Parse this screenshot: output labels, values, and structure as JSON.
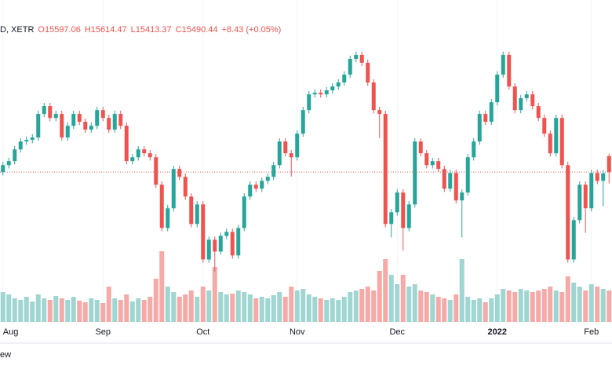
{
  "chart_data": {
    "type": "candlestick",
    "legend": {
      "symbol": "D, XETR",
      "open": "O15597.06",
      "high": "H15614.47",
      "low": "L15413.37",
      "close": "C15490.44",
      "change": "+8.43 (+0.05%)"
    },
    "footer": "ew",
    "categories": [
      "Aug",
      null,
      null,
      null,
      null,
      null,
      null,
      null,
      null,
      null,
      null,
      null,
      null,
      null,
      null,
      null,
      null,
      "Sep",
      null,
      null,
      null,
      null,
      null,
      null,
      null,
      null,
      null,
      null,
      null,
      null,
      null,
      null,
      null,
      null,
      "Oct",
      null,
      null,
      null,
      null,
      null,
      null,
      null,
      null,
      null,
      null,
      null,
      null,
      null,
      null,
      null,
      "Nov",
      null,
      null,
      null,
      null,
      null,
      null,
      null,
      null,
      null,
      null,
      null,
      null,
      null,
      null,
      null,
      null,
      "Dec",
      null,
      null,
      null,
      null,
      null,
      null,
      null,
      null,
      null,
      null,
      null,
      null,
      null,
      null,
      null,
      null,
      "2022",
      null,
      null,
      null,
      null,
      null,
      null,
      null,
      null,
      null,
      null,
      null,
      null,
      null,
      null,
      null,
      "Feb",
      null,
      null,
      null
    ],
    "open": [
      15490,
      15537,
      15564,
      15643,
      15696,
      15707,
      15723,
      15882,
      15935,
      15855,
      15882,
      15723,
      15802,
      15882,
      15829,
      15776,
      15802,
      15908,
      15855,
      15776,
      15882,
      15802,
      15564,
      15590,
      15643,
      15617,
      15590,
      15405,
      15113,
      15246,
      15511,
      15458,
      15325,
      15140,
      15272,
      14901,
      15034,
      14954,
      15060,
      15087,
      14928,
      15113,
      15325,
      15405,
      15378,
      15431,
      15458,
      15537,
      15696,
      15617,
      15590,
      15749,
      15908,
      16014,
      16025,
      16014,
      16041,
      16067,
      16094,
      16147,
      16253,
      16280,
      16227,
      16094,
      15908,
      15882,
      15140,
      15219,
      15352,
      15113,
      15272,
      15696,
      15617,
      15537,
      15564,
      15511,
      15378,
      15484,
      15299,
      15352,
      15590,
      15696,
      15882,
      15829,
      15961,
      16147,
      16280,
      16067,
      15908,
      15988,
      16014,
      15935,
      15855,
      15749,
      15617,
      15855,
      15537,
      14901,
      15166,
      15405,
      15246,
      15484,
      15431,
      15597.06
    ],
    "high": [
      15559,
      15586,
      15665,
      15718,
      15729,
      15745,
      15904,
      15957,
      15957,
      15904,
      15904,
      15824,
      15904,
      15904,
      15851,
      15824,
      15930,
      15930,
      15877,
      15904,
      15904,
      15824,
      15612,
      15665,
      15665,
      15639,
      15612,
      15427,
      15268,
      15533,
      15533,
      15480,
      15347,
      15294,
      15294,
      15056,
      15056,
      15082,
      15109,
      15109,
      15135,
      15347,
      15427,
      15427,
      15453,
      15480,
      15559,
      15718,
      15718,
      15639,
      15771,
      15930,
      16036,
      16047,
      16047,
      16063,
      16089,
      16116,
      16169,
      16275,
      16302,
      16302,
      16249,
      16116,
      15930,
      15904,
      15241,
      15374,
      15374,
      15294,
      15718,
      15718,
      15639,
      15586,
      15586,
      15533,
      15506,
      15506,
      15374,
      15612,
      15718,
      15904,
      15904,
      15983,
      16169,
      16302,
      16302,
      16089,
      16010,
      16036,
      16036,
      15957,
      15877,
      15771,
      15877,
      15877,
      15559,
      15188,
      15427,
      15427,
      15506,
      15506,
      15504,
      15614.47
    ],
    "low": [
      15468,
      15515,
      15542,
      15621,
      15674,
      15685,
      15701,
      15860,
      15833,
      15833,
      15701,
      15701,
      15780,
      15807,
      15754,
      15754,
      15780,
      15833,
      15754,
      15754,
      15780,
      15542,
      15542,
      15568,
      15595,
      15568,
      15383,
      15091,
      15091,
      15224,
      15436,
      15303,
      15118,
      15118,
      14879,
      14879,
      14820,
      14932,
      15038,
      14906,
      14906,
      15091,
      15303,
      15356,
      15356,
      15409,
      15436,
      15515,
      15595,
      15460,
      15568,
      15727,
      15886,
      15992,
      15992,
      15992,
      16019,
      16045,
      16072,
      16125,
      16231,
      16205,
      16072,
      15886,
      15720,
      15118,
      15050,
      15197,
      14960,
      15091,
      15250,
      15595,
      15515,
      15515,
      15489,
      15356,
      15356,
      15277,
      15050,
      15330,
      15568,
      15674,
      15807,
      15807,
      15939,
      16125,
      16045,
      15886,
      15886,
      15966,
      15913,
      15833,
      15727,
      15595,
      15595,
      15515,
      14879,
      14879,
      15144,
      15080,
      15224,
      15409,
      15260,
      15413.37
    ],
    "close": [
      15537,
      15564,
      15643,
      15696,
      15707,
      15723,
      15882,
      15935,
      15855,
      15882,
      15723,
      15802,
      15882,
      15829,
      15776,
      15802,
      15908,
      15855,
      15776,
      15882,
      15802,
      15564,
      15590,
      15643,
      15617,
      15590,
      15405,
      15113,
      15246,
      15511,
      15458,
      15325,
      15140,
      15272,
      14901,
      15034,
      14954,
      15060,
      15087,
      14928,
      15113,
      15325,
      15405,
      15378,
      15431,
      15458,
      15537,
      15696,
      15617,
      15590,
      15749,
      15908,
      16014,
      16025,
      16014,
      16041,
      16067,
      16094,
      16147,
      16253,
      16280,
      16227,
      16094,
      15908,
      15882,
      15140,
      15219,
      15352,
      15113,
      15272,
      15696,
      15617,
      15537,
      15564,
      15511,
      15378,
      15484,
      15299,
      15352,
      15590,
      15696,
      15882,
      15829,
      15961,
      16147,
      16280,
      16067,
      15908,
      15988,
      16014,
      15935,
      15855,
      15749,
      15617,
      15855,
      15537,
      14901,
      15166,
      15405,
      15246,
      15484,
      15431,
      15482.01,
      15490.44
    ],
    "volume": [
      38,
      35,
      30,
      28,
      32,
      26,
      35,
      30,
      28,
      33,
      30,
      28,
      32,
      27,
      25,
      30,
      28,
      24,
      45,
      30,
      28,
      35,
      26,
      30,
      28,
      32,
      55,
      90,
      45,
      38,
      32,
      35,
      40,
      32,
      45,
      40,
      70,
      38,
      35,
      36,
      40,
      38,
      35,
      30,
      32,
      30,
      34,
      38,
      32,
      45,
      40,
      42,
      35,
      32,
      30,
      28,
      30,
      28,
      32,
      38,
      40,
      42,
      45,
      40,
      65,
      80,
      60,
      48,
      60,
      45,
      48,
      40,
      38,
      35,
      32,
      30,
      28,
      35,
      80,
      32,
      28,
      30,
      25,
      30,
      35,
      42,
      40,
      38,
      42,
      40,
      38,
      40,
      42,
      45,
      40,
      38,
      58,
      50,
      45,
      40,
      48,
      45,
      42,
      40
    ],
    "ylim": [
      14480,
      16650
    ],
    "volume_ylim": [
      0,
      100
    ],
    "up_color": "#26a69a",
    "down_color": "#ef5350",
    "volume_up_color": "#9fd6d1",
    "volume_down_color": "#f5aaa8",
    "last_price_line": true,
    "grid": true
  }
}
